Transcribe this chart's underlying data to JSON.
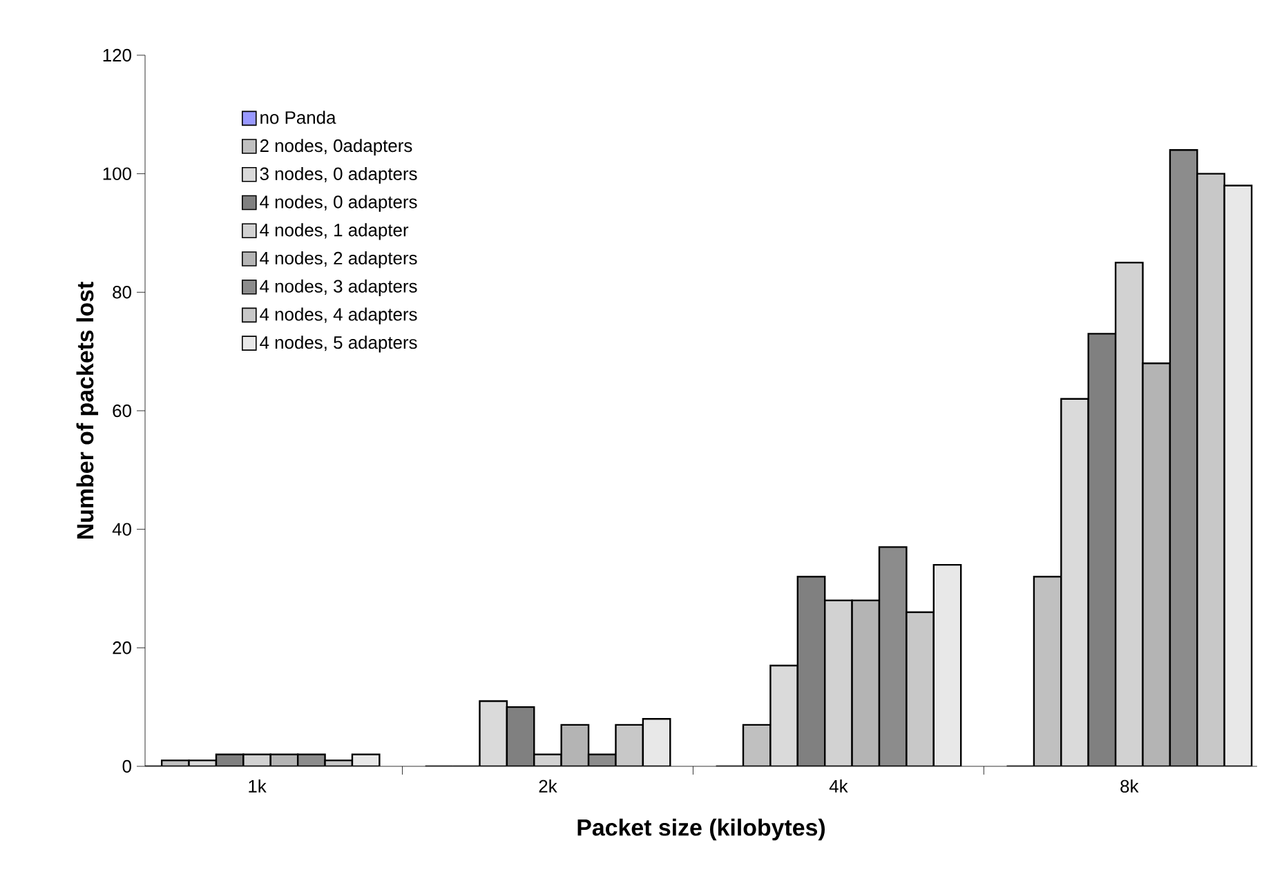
{
  "chart_data": {
    "type": "bar",
    "xlabel": "Packet size (kilobytes)",
    "ylabel": "Number of packets lost",
    "categories": [
      "1k",
      "2k",
      "4k",
      "8k"
    ],
    "series": [
      {
        "name": "no Panda",
        "color": "#9999ff",
        "values": [
          0,
          0,
          0,
          0
        ]
      },
      {
        "name": "2 nodes, 0adapters",
        "color": "#c0c0c0",
        "values": [
          1,
          0,
          7,
          32
        ]
      },
      {
        "name": "3 nodes, 0 adapters",
        "color": "#dadada",
        "values": [
          1,
          11,
          17,
          62
        ]
      },
      {
        "name": "4 nodes, 0 adapters",
        "color": "#808080",
        "values": [
          2,
          10,
          32,
          73
        ]
      },
      {
        "name": "4 nodes, 1 adapter",
        "color": "#d2d2d2",
        "values": [
          2,
          2,
          28,
          85
        ]
      },
      {
        "name": "4 nodes, 2 adapters",
        "color": "#b4b4b4",
        "values": [
          2,
          7,
          28,
          68
        ]
      },
      {
        "name": "4 nodes, 3 adapters",
        "color": "#8c8c8c",
        "values": [
          2,
          2,
          37,
          104
        ]
      },
      {
        "name": "4 nodes, 4 adapters",
        "color": "#c8c8c8",
        "values": [
          1,
          7,
          26,
          100
        ]
      },
      {
        "name": "4 nodes, 5 adapters",
        "color": "#e8e8e8",
        "values": [
          2,
          8,
          34,
          98
        ]
      }
    ],
    "ylim": [
      0,
      120
    ],
    "yticks": [
      0,
      20,
      40,
      60,
      80,
      100,
      120
    ],
    "legend": "top left"
  }
}
